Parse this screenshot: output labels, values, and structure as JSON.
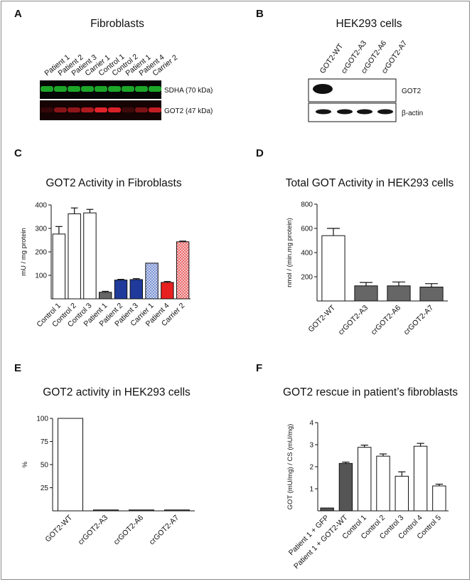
{
  "panels": {
    "A": {
      "letter": "A",
      "title": "Fibroblasts",
      "lanes": [
        "Patient 1",
        "Patient 2",
        "Patient 3",
        "Carrier 1",
        "Control 1",
        "Control 2",
        "Patient 1",
        "Patient 4",
        "Carrier 2"
      ],
      "band_labels": [
        "SDHA (70 kDa)",
        "GOT2 (47 kDa)"
      ],
      "band_colors": {
        "sdha": "#1fae2a",
        "got2": "#e3232a"
      }
    },
    "B": {
      "letter": "B",
      "title": "HEK293 cells",
      "lanes": [
        "GOT2-WT",
        "crGOT2-A3",
        "crGOT2-A6",
        "crGOT2-A7"
      ],
      "band_labels": [
        "GOT2",
        "β-actin"
      ]
    },
    "C": {
      "letter": "C"
    },
    "D": {
      "letter": "D"
    },
    "E": {
      "letter": "E"
    },
    "F": {
      "letter": "F"
    }
  },
  "chart_data": [
    {
      "panel": "C",
      "type": "bar",
      "title": "GOT2 Activity in Fibroblasts",
      "ylabel": "mU / mg protein",
      "xlabel": "",
      "ylim": [
        0,
        400
      ],
      "yticks": [
        100,
        200,
        300,
        400
      ],
      "categories": [
        "Control 1",
        "Control 2",
        "Control 3",
        "Patient 1",
        "Patient 2",
        "Patient 3",
        "Carrier 1",
        "Patient 4",
        "Carrier 2"
      ],
      "values": [
        276,
        362,
        366,
        28,
        80,
        82,
        152,
        70,
        243
      ],
      "errors": [
        32,
        25,
        15,
        4,
        3,
        4,
        0,
        4,
        3
      ],
      "colors": [
        "#ffffff",
        "#ffffff",
        "#ffffff",
        "#666666",
        "#1f3a9a",
        "#1f3a9a",
        "#9aaee0",
        "#e8201f",
        "#f3a3a3"
      ],
      "grid": false
    },
    {
      "panel": "D",
      "type": "bar",
      "title": "Total GOT Activity in HEK293 cells",
      "ylabel": "nmol / (min.mg protein)",
      "xlabel": "",
      "ylim": [
        0,
        800
      ],
      "yticks": [
        200,
        400,
        600,
        800
      ],
      "categories": [
        "GOT2-WT",
        "crGOT2-A3",
        "crGOT2-A6",
        "crGOT2-A7"
      ],
      "values": [
        540,
        125,
        125,
        115
      ],
      "errors": [
        60,
        28,
        32,
        28
      ],
      "colors": [
        "#ffffff",
        "#666666",
        "#666666",
        "#666666"
      ],
      "grid": false
    },
    {
      "panel": "E",
      "type": "bar",
      "title": "GOT2 activity in HEK293 cells",
      "ylabel": "%",
      "xlabel": "",
      "ylim": [
        0,
        100
      ],
      "yticks": [
        25,
        50,
        75,
        100
      ],
      "categories": [
        "GOT2-WT",
        "crGOT2-A3",
        "crGOT2-A6",
        "crGOT2-A7"
      ],
      "values": [
        100,
        1,
        1,
        1
      ],
      "errors": [
        0,
        0,
        0,
        0
      ],
      "colors": [
        "#ffffff",
        "#666666",
        "#666666",
        "#666666"
      ],
      "grid": false
    },
    {
      "panel": "F",
      "type": "bar",
      "title": "GOT2 rescue in patient’s fibroblasts",
      "ylabel": "GOT (mU/mg) / CS (mU/mg)",
      "xlabel": "",
      "ylim": [
        0,
        4
      ],
      "yticks": [
        1,
        2,
        3,
        4
      ],
      "categories": [
        "Patient 1 + GFP",
        "Patient 1 + GOT2-WT",
        "Control 1",
        "Control 2",
        "Control 3",
        "Control 4",
        "Control 5"
      ],
      "values": [
        0.13,
        2.15,
        2.88,
        2.48,
        1.57,
        2.93,
        1.13
      ],
      "errors": [
        0,
        0.06,
        0.1,
        0.1,
        0.2,
        0.13,
        0.08
      ],
      "colors": [
        "#555555",
        "#555555",
        "#ffffff",
        "#ffffff",
        "#ffffff",
        "#ffffff",
        "#ffffff"
      ],
      "grid": false
    }
  ]
}
